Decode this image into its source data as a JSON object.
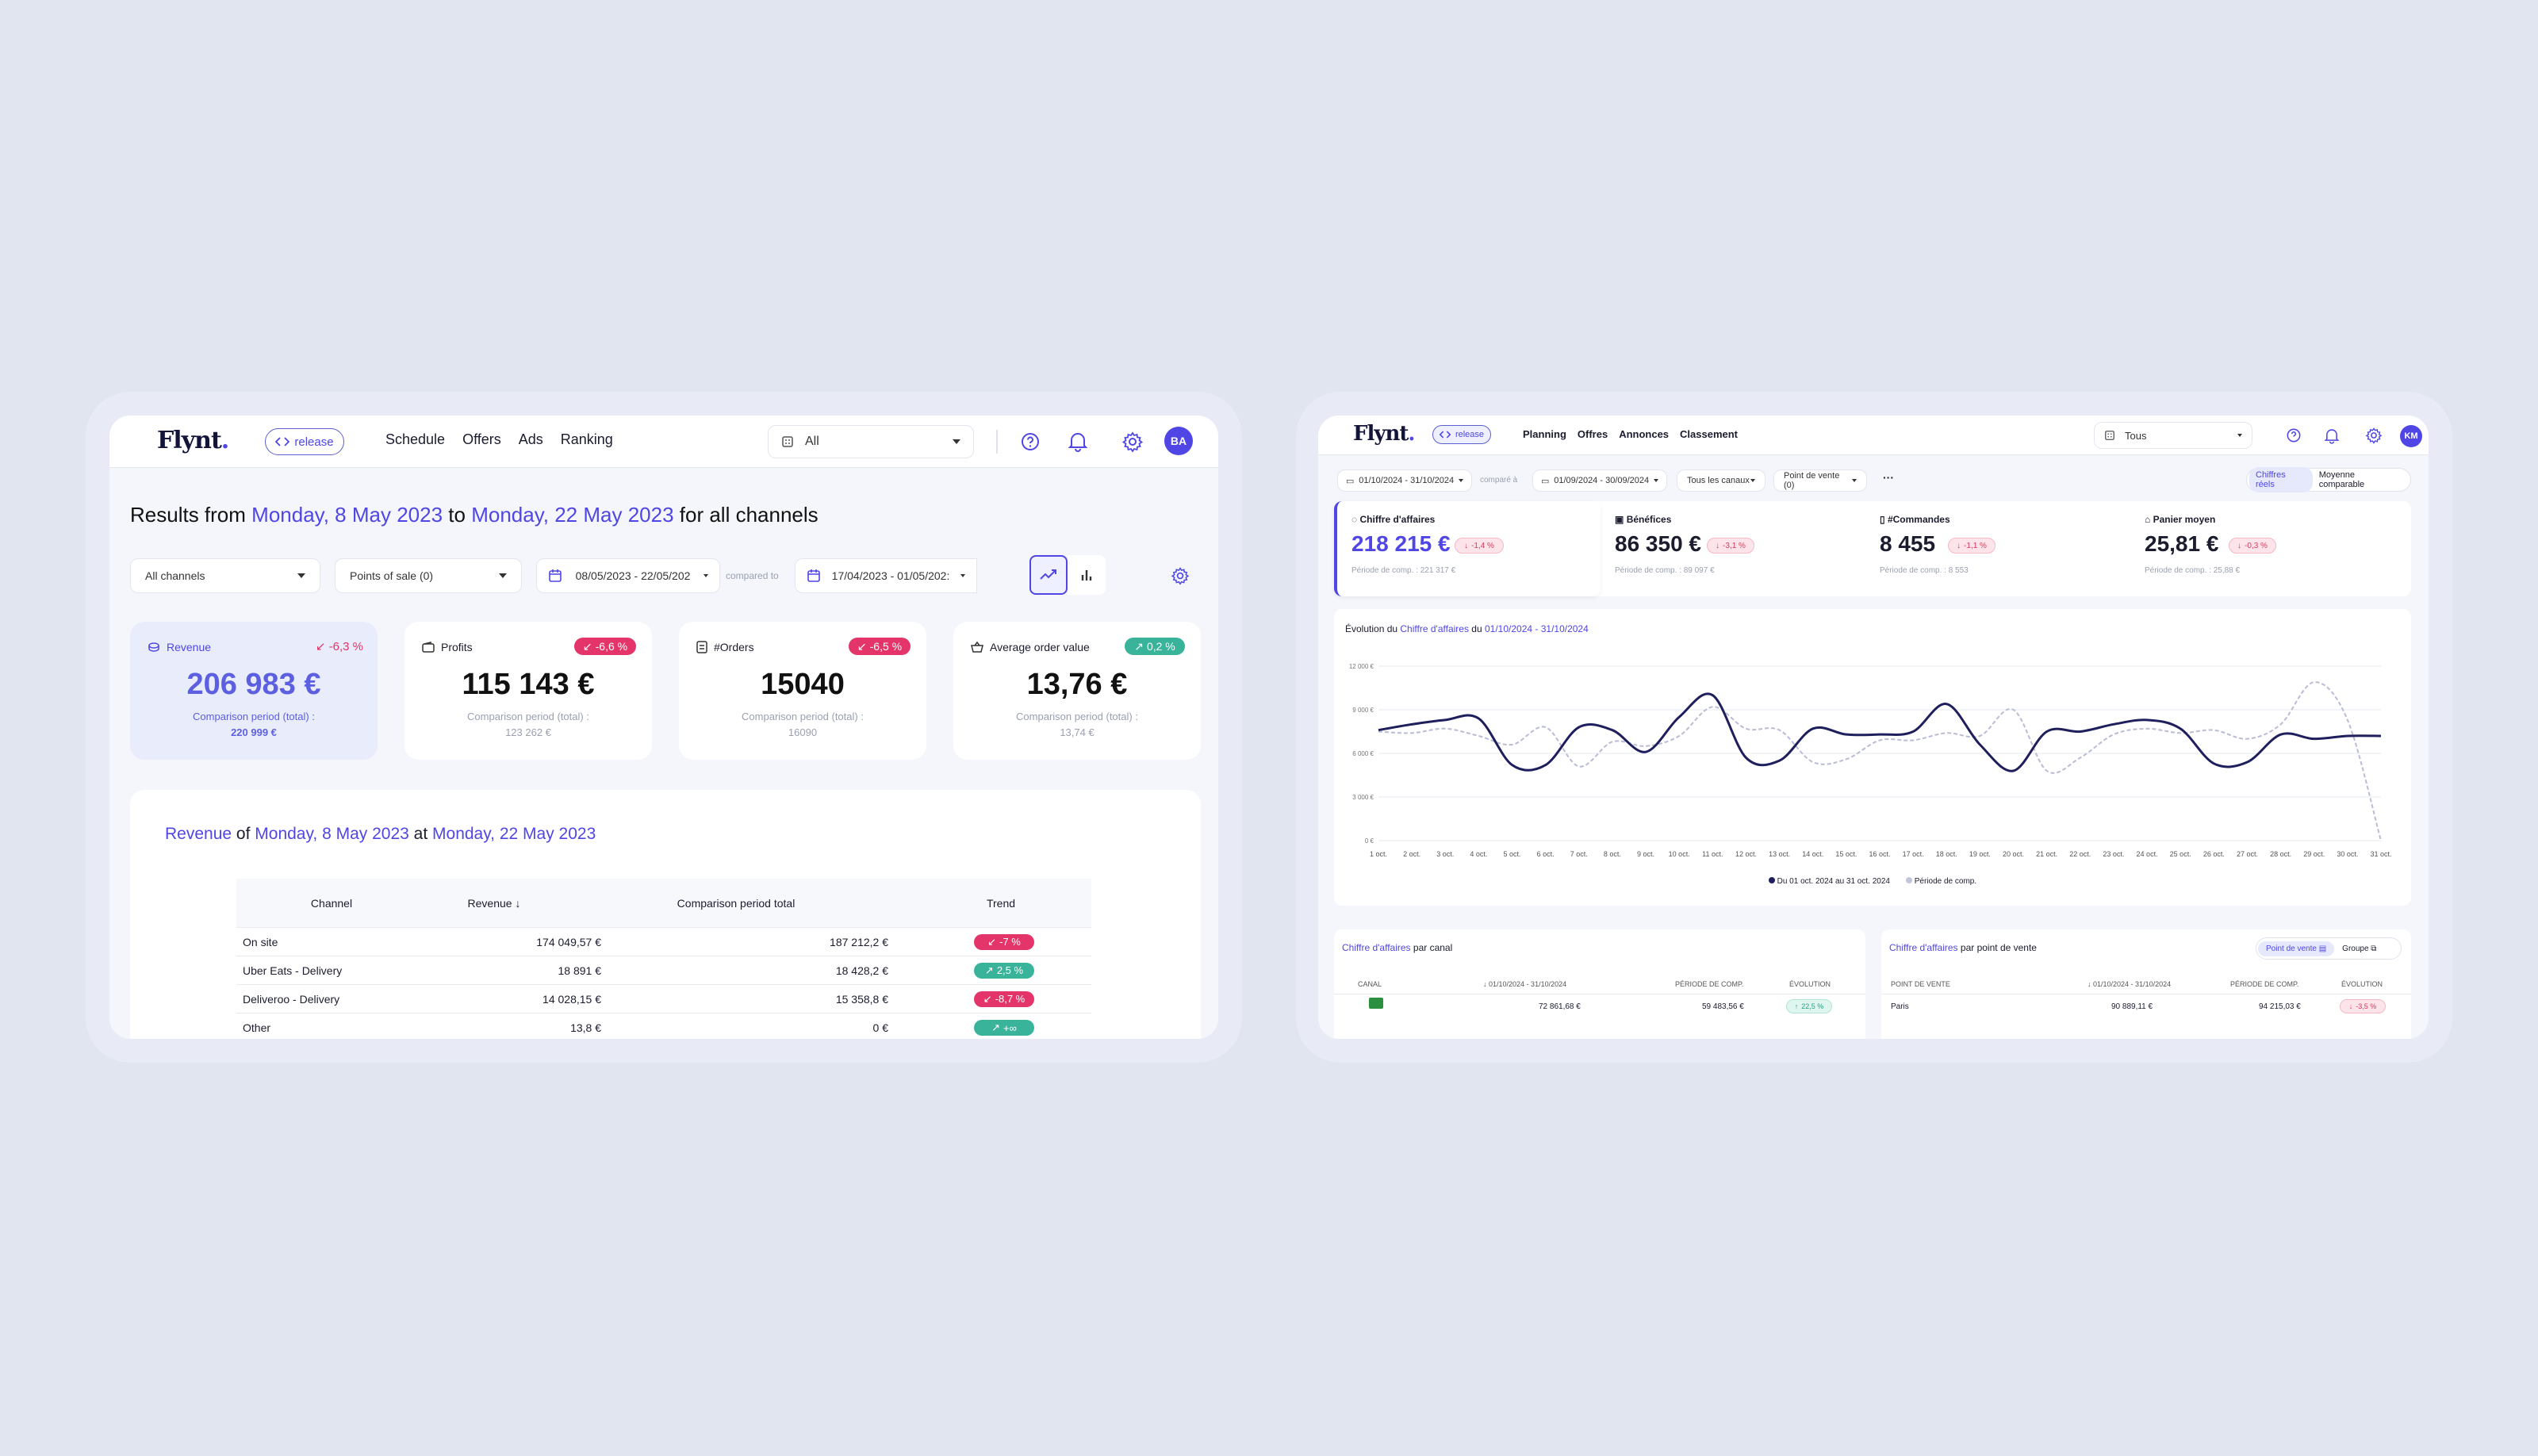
{
  "left": {
    "logo": "Flynt",
    "release_label": "release",
    "nav": [
      "Schedule",
      "Offers",
      "Ads",
      "Ranking"
    ],
    "store_select": "All",
    "avatar": "BA",
    "heading": {
      "p1": "Results from",
      "d1": "Monday, 8 May 2023",
      "p2": "to",
      "d2": "Monday, 22 May 2023",
      "p3": "for all channels"
    },
    "filters": {
      "channels": "All channels",
      "points": "Points of sale (0)",
      "date1": "08/05/2023 - 22/05/202",
      "compared": "compared to",
      "date2": "17/04/2023 - 01/05/202:"
    },
    "kpis": [
      {
        "label": "Revenue",
        "badge": "-6,3 %",
        "value": "206 983 €",
        "comp": "Comparison period (total) :",
        "comp_value": "220 999 €"
      },
      {
        "label": "Profits",
        "badge": "-6,6 %",
        "value": "115 143 €",
        "comp": "Comparison period (total) :",
        "comp_value": "123 262 €"
      },
      {
        "label": "#Orders",
        "badge": "-6,5 %",
        "value": "15040",
        "comp": "Comparison period (total) :",
        "comp_value": "16090"
      },
      {
        "label": "Average order value",
        "badge": "0,2 %",
        "value": "13,76 €",
        "comp": "Comparison period (total) :",
        "comp_value": "13,74 €"
      }
    ],
    "revenue_section": {
      "t1": "Revenue",
      "t2": "of",
      "t3": "Monday, 8 May 2023",
      "t4": "at",
      "t5": "Monday, 22 May 2023"
    },
    "table": {
      "headers": [
        "Channel",
        "Revenue",
        "Comparison period total",
        "Trend"
      ],
      "rows": [
        {
          "channel": "On site",
          "revenue": "174 049,57 €",
          "comp": "187 212,2 €",
          "trend": "-7 %",
          "dir": "down"
        },
        {
          "channel": "Uber Eats - Delivery",
          "revenue": "18 891 €",
          "comp": "18 428,2 €",
          "trend": "2,5 %",
          "dir": "up"
        },
        {
          "channel": "Deliveroo - Delivery",
          "revenue": "14 028,15 €",
          "comp": "15 358,8 €",
          "trend": "-8,7 %",
          "dir": "down"
        },
        {
          "channel": "Other",
          "revenue": "13,8 €",
          "comp": "0 €",
          "trend": "+∞",
          "dir": "up"
        }
      ]
    },
    "colors": {
      "accent": "#4f46e5",
      "red": "#e3356a",
      "green": "#39b39a"
    }
  },
  "right": {
    "logo": "Flynt",
    "release_label": "release",
    "nav": [
      "Planning",
      "Offres",
      "Annonces",
      "Classement"
    ],
    "store_select": "Tous",
    "avatar": "KM",
    "filters": {
      "date1": "01/10/2024 - 31/10/2024",
      "compared": "comparé à",
      "date2": "01/09/2024 - 30/09/2024",
      "channels": "Tous les canaux",
      "points": "Point de vente (0)",
      "more": "···"
    },
    "toggle": [
      "Chiffres réels",
      "Moyenne comparable"
    ],
    "kpis": [
      {
        "label": "Chiffre d'affaires",
        "value": "218 215 €",
        "badge": "-1,4 %",
        "comp": "Période de comp. : 221 317 €"
      },
      {
        "label": "Bénéfices",
        "value": "86 350 €",
        "badge": "-3,1 %",
        "comp": "Période de comp. : 89 097 €"
      },
      {
        "label": "#Commandes",
        "value": "8 455",
        "badge": "-1,1 %",
        "comp": "Période de comp. : 8 553"
      },
      {
        "label": "Panier moyen",
        "value": "25,81 €",
        "badge": "-0,3 %",
        "comp": "Période de comp. : 25,88 €"
      }
    ],
    "chart_title": {
      "p1": "Évolution du",
      "p2": "Chiffre d'affaires",
      "p3": "du",
      "p4": "01/10/2024 - 31/10/2024"
    },
    "legend": [
      "Du 01 oct. 2024 au 31 oct. 2024",
      "Période de comp."
    ],
    "canal": {
      "t1": "Chiffre d'affaires",
      "t2": "par canal",
      "headers": [
        "CANAL",
        "01/10/2024 - 31/10/2024",
        "PÉRIODE DE COMP.",
        "ÉVOLUTION"
      ],
      "row": {
        "revenue": "72 861,68 €",
        "comp": "59 483,56 €",
        "trend": "22,5 %"
      }
    },
    "pos": {
      "t1": "Chiffre d'affaires",
      "t2": "par point de vente",
      "buttons": [
        "Point de vente",
        "Groupe"
      ],
      "headers": [
        "POINT DE VENTE",
        "01/10/2024 - 31/10/2024",
        "PÉRIODE DE COMP.",
        "ÉVOLUTION"
      ],
      "row": {
        "name": "Paris",
        "revenue": "90 889,11 €",
        "comp": "94 215,03 €",
        "trend": "-3,5 %"
      }
    },
    "chart_data": {
      "type": "line",
      "y_ticks": [
        "0 €",
        "3 000 €",
        "6 000 €",
        "9 000 €",
        "12 000 €"
      ],
      "ylim": [
        0,
        12000
      ],
      "categories": [
        "1 oct.",
        "2 oct.",
        "3 oct.",
        "4 oct.",
        "5 oct.",
        "6 oct.",
        "7 oct.",
        "8 oct.",
        "9 oct.",
        "10 oct.",
        "11 oct.",
        "12 oct.",
        "13 oct.",
        "14 oct.",
        "15 oct.",
        "16 oct.",
        "17 oct.",
        "18 oct.",
        "19 oct.",
        "20 oct.",
        "21 oct.",
        "22 oct.",
        "23 oct.",
        "24 oct.",
        "25 oct.",
        "26 oct.",
        "27 oct.",
        "28 oct.",
        "29 oct.",
        "30 oct.",
        "31 oct."
      ],
      "series": [
        {
          "name": "Du 01 oct. 2024 au 31 oct. 2024",
          "color": "#1e1f5c",
          "values": [
            7600,
            8000,
            8300,
            8400,
            5200,
            5200,
            7800,
            7600,
            6100,
            8500,
            10000,
            5700,
            5500,
            7700,
            7300,
            7300,
            7500,
            9400,
            6600,
            4800,
            7500,
            7500,
            8000,
            8300,
            7700,
            5300,
            5400,
            7300,
            7000,
            7200,
            7200
          ]
        },
        {
          "name": "Période de comp.",
          "color": "#b9bcd4",
          "values": [
            7500,
            7400,
            7700,
            7200,
            6600,
            7800,
            5100,
            6800,
            6500,
            7200,
            9200,
            7700,
            7600,
            5400,
            5600,
            6900,
            6900,
            7400,
            7200,
            9000,
            4800,
            5700,
            7300,
            7700,
            7400,
            7600,
            7000,
            8000,
            10900,
            8300,
            0
          ]
        }
      ]
    }
  }
}
